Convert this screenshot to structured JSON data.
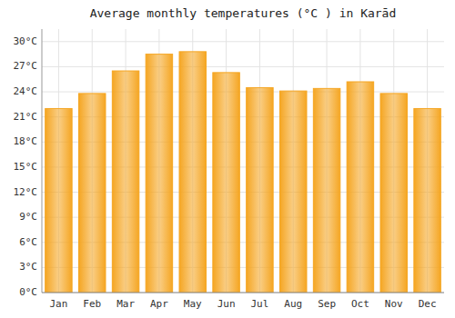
{
  "chart_data": {
    "type": "bar",
    "title": "Average monthly temperatures (°C ) in Karād",
    "categories": [
      "Jan",
      "Feb",
      "Mar",
      "Apr",
      "May",
      "Jun",
      "Jul",
      "Aug",
      "Sep",
      "Oct",
      "Nov",
      "Dec"
    ],
    "values": [
      22.0,
      23.8,
      26.5,
      28.5,
      28.8,
      26.3,
      24.5,
      24.1,
      24.4,
      25.2,
      23.8,
      22.0
    ],
    "color": "#F5A623",
    "ylim": [
      0,
      31.5
    ],
    "yticks": [
      {
        "value": 0,
        "label": "0°C"
      },
      {
        "value": 3,
        "label": "3°C"
      },
      {
        "value": 6,
        "label": "6°C"
      },
      {
        "value": 9,
        "label": "9°C"
      },
      {
        "value": 12,
        "label": "12°C"
      },
      {
        "value": 15,
        "label": "15°C"
      },
      {
        "value": 18,
        "label": "18°C"
      },
      {
        "value": 21,
        "label": "21°C"
      },
      {
        "value": 24,
        "label": "24°C"
      },
      {
        "value": 27,
        "label": "27°C"
      },
      {
        "value": 30,
        "label": "30°C"
      }
    ],
    "grid": true
  }
}
